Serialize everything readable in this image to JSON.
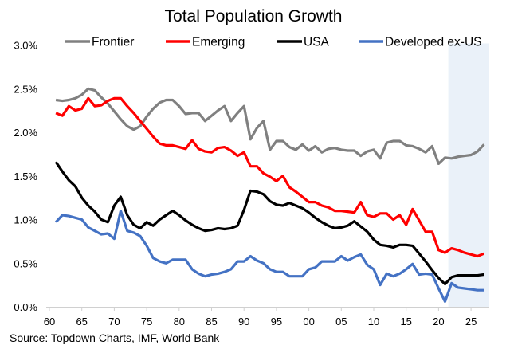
{
  "chart_data": {
    "type": "line",
    "title": "Total Population Growth",
    "source": "Source: Topdown Charts, IMF, World Bank",
    "xlabel": "",
    "ylabel": "",
    "xlim": [
      1960,
      2028
    ],
    "ylim": [
      0,
      3.0
    ],
    "grid": false,
    "legend_position": "top",
    "forecast_shaded_range": [
      2021.5,
      2028
    ],
    "shade_color": "#EAF1F9",
    "x_ticks": [
      1960,
      1965,
      1970,
      1975,
      1980,
      1985,
      1990,
      1995,
      2000,
      2005,
      2010,
      2015,
      2020,
      2025
    ],
    "x_tick_labels": [
      "60",
      "65",
      "70",
      "75",
      "80",
      "85",
      "90",
      "95",
      "00",
      "05",
      "10",
      "15",
      "20",
      "25"
    ],
    "y_ticks": [
      0,
      0.5,
      1.0,
      1.5,
      2.0,
      2.5,
      3.0
    ],
    "y_tick_labels": [
      "0.0%",
      "0.5%",
      "1.0%",
      "1.5%",
      "2.0%",
      "2.5%",
      "3.0%"
    ],
    "x_start": 1961,
    "series": [
      {
        "name": "Frontier",
        "color": "#808080",
        "values": [
          2.37,
          2.36,
          2.37,
          2.39,
          2.43,
          2.5,
          2.48,
          2.4,
          2.33,
          2.24,
          2.15,
          2.07,
          2.03,
          2.07,
          2.18,
          2.27,
          2.34,
          2.37,
          2.37,
          2.3,
          2.21,
          2.22,
          2.22,
          2.13,
          2.19,
          2.25,
          2.3,
          2.13,
          2.22,
          2.3,
          1.92,
          2.05,
          2.13,
          1.8,
          1.9,
          1.9,
          1.83,
          1.8,
          1.86,
          1.79,
          1.84,
          1.77,
          1.81,
          1.82,
          1.8,
          1.79,
          1.79,
          1.73,
          1.78,
          1.8,
          1.7,
          1.88,
          1.9,
          1.9,
          1.85,
          1.84,
          1.81,
          1.77,
          1.84,
          1.64,
          1.71,
          1.7,
          1.72,
          1.73,
          1.74,
          1.78,
          1.86
        ]
      },
      {
        "name": "Emerging",
        "color": "#FF0000",
        "values": [
          2.22,
          2.19,
          2.3,
          2.25,
          2.27,
          2.39,
          2.3,
          2.31,
          2.36,
          2.39,
          2.39,
          2.3,
          2.22,
          2.13,
          2.04,
          1.95,
          1.87,
          1.85,
          1.85,
          1.83,
          1.81,
          1.91,
          1.81,
          1.78,
          1.77,
          1.82,
          1.83,
          1.79,
          1.73,
          1.77,
          1.61,
          1.61,
          1.53,
          1.49,
          1.44,
          1.5,
          1.37,
          1.32,
          1.26,
          1.2,
          1.2,
          1.16,
          1.14,
          1.1,
          1.1,
          1.09,
          1.08,
          1.2,
          1.05,
          1.03,
          1.07,
          1.07,
          1.0,
          1.05,
          0.94,
          1.12,
          0.99,
          0.86,
          0.86,
          0.65,
          0.62,
          0.67,
          0.65,
          0.62,
          0.6,
          0.58,
          0.61
        ]
      },
      {
        "name": "USA",
        "color": "#000000",
        "values": [
          1.66,
          1.55,
          1.45,
          1.38,
          1.25,
          1.16,
          1.09,
          1.0,
          0.97,
          1.16,
          1.26,
          1.05,
          0.94,
          0.9,
          0.97,
          0.93,
          1.0,
          1.05,
          1.1,
          1.05,
          0.99,
          0.94,
          0.9,
          0.87,
          0.88,
          0.9,
          0.89,
          0.9,
          0.93,
          1.11,
          1.33,
          1.32,
          1.29,
          1.21,
          1.17,
          1.16,
          1.19,
          1.16,
          1.13,
          1.08,
          1.02,
          0.97,
          0.93,
          0.9,
          0.91,
          0.93,
          0.98,
          0.92,
          0.86,
          0.77,
          0.71,
          0.7,
          0.68,
          0.71,
          0.71,
          0.7,
          0.61,
          0.52,
          0.42,
          0.33,
          0.26,
          0.34,
          0.36,
          0.36,
          0.36,
          0.36,
          0.37
        ]
      },
      {
        "name": "Developed ex-US",
        "color": "#4472C4",
        "values": [
          0.97,
          1.05,
          1.04,
          1.02,
          1.0,
          0.91,
          0.87,
          0.83,
          0.84,
          0.78,
          1.1,
          0.87,
          0.85,
          0.81,
          0.7,
          0.56,
          0.52,
          0.5,
          0.54,
          0.54,
          0.54,
          0.43,
          0.38,
          0.35,
          0.37,
          0.38,
          0.4,
          0.43,
          0.52,
          0.52,
          0.58,
          0.53,
          0.5,
          0.43,
          0.4,
          0.4,
          0.35,
          0.35,
          0.35,
          0.43,
          0.45,
          0.52,
          0.52,
          0.52,
          0.58,
          0.53,
          0.57,
          0.6,
          0.48,
          0.43,
          0.25,
          0.38,
          0.35,
          0.38,
          0.43,
          0.49,
          0.37,
          0.38,
          0.37,
          0.21,
          0.06,
          0.27,
          0.22,
          0.21,
          0.2,
          0.19,
          0.19
        ]
      }
    ]
  }
}
